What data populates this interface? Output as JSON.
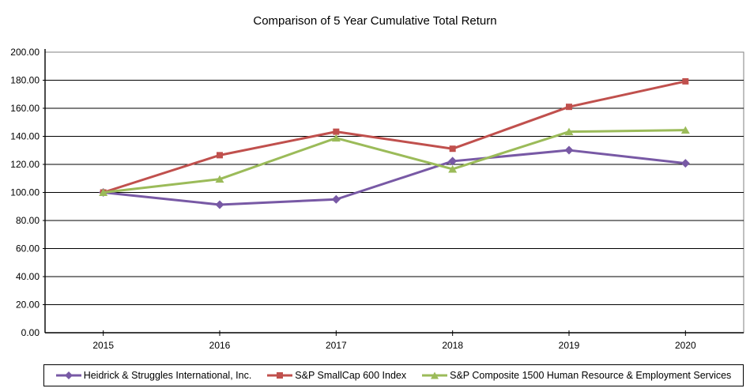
{
  "title": "Comparison of 5 Year Cumulative Total Return",
  "chart_data": {
    "type": "line",
    "title": "Comparison of 5 Year Cumulative Total Return",
    "categories": [
      "2015",
      "2016",
      "2017",
      "2018",
      "2019",
      "2020"
    ],
    "series": [
      {
        "name": "Heidrick & Struggles International, Inc.",
        "marker": "diamond",
        "color": "#7859A5",
        "values": [
          100.0,
          91.29,
          95.07,
          122.29,
          130.11,
          120.76
        ]
      },
      {
        "name": "S&P SmallCap 600 Index",
        "marker": "square",
        "color": "#C0504D",
        "values": [
          100.0,
          126.56,
          143.3,
          131.15,
          161.03,
          179.2
        ]
      },
      {
        "name": "S&P Composite 1500 Human Resource & Employment Services",
        "marker": "triangle",
        "color": "#9BBB59",
        "values": [
          100.0,
          109.49,
          138.78,
          116.65,
          143.29,
          144.41
        ]
      }
    ],
    "xlabel": "",
    "ylabel": "",
    "ylim": [
      0,
      200
    ],
    "ytick_step": 20,
    "ytick_decimals": 2,
    "grid": "horizontal",
    "legend_position": "bottom"
  },
  "colors": {
    "background": "#FFFFFF",
    "plot_border": "#808080",
    "axis": "#000000",
    "gridline": "#000000",
    "legend_border": "#000000",
    "text": "#000000"
  }
}
